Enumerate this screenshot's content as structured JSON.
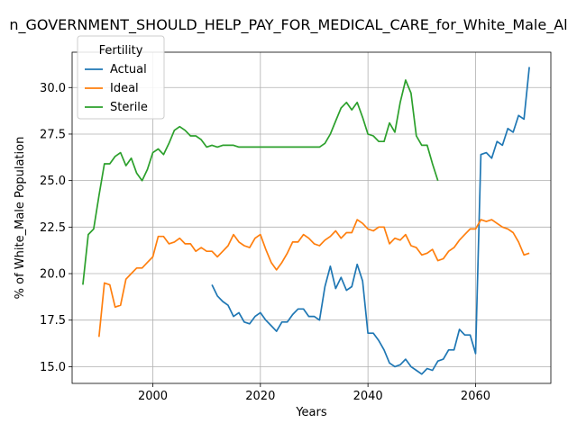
{
  "chart_data": {
    "type": "line",
    "title": "n_GOVERNMENT_SHOULD_HELP_PAY_FOR_MEDICAL_CARE_for_White_Male_Al",
    "xlabel": "Years",
    "ylabel": "% of White_Male Population",
    "xlim": [
      1985,
      2074
    ],
    "ylim": [
      14.1,
      31.9
    ],
    "x_ticks": [
      2000,
      2020,
      2040,
      2060
    ],
    "y_ticks": [
      15.0,
      17.5,
      20.0,
      22.5,
      25.0,
      27.5,
      30.0
    ],
    "grid": true,
    "legend": {
      "title": "Fertility",
      "placement": "top-left"
    },
    "series": [
      {
        "name": "Actual",
        "color": "#1f77b4",
        "x": [
          2011,
          2012,
          2013,
          2014,
          2015,
          2016,
          2017,
          2018,
          2019,
          2020,
          2021,
          2022,
          2023,
          2024,
          2025,
          2026,
          2027,
          2028,
          2029,
          2030,
          2031,
          2032,
          2033,
          2034,
          2035,
          2036,
          2037,
          2038,
          2039,
          2040,
          2041,
          2042,
          2043,
          2044,
          2045,
          2046,
          2047,
          2048,
          2049,
          2050,
          2051,
          2052,
          2053,
          2054,
          2055,
          2056,
          2057,
          2058,
          2059,
          2060,
          2061,
          2062,
          2063,
          2064,
          2065,
          2066,
          2067,
          2068,
          2069,
          2070
        ],
        "values": [
          19.4,
          18.8,
          18.5,
          18.3,
          17.7,
          17.9,
          17.4,
          17.3,
          17.7,
          17.9,
          17.5,
          17.2,
          16.9,
          17.4,
          17.4,
          17.8,
          18.1,
          18.1,
          17.7,
          17.7,
          17.5,
          19.3,
          20.4,
          19.2,
          19.8,
          19.1,
          19.3,
          20.5,
          19.6,
          16.8,
          16.8,
          16.4,
          15.9,
          15.2,
          15.0,
          15.1,
          15.4,
          15.0,
          14.8,
          14.6,
          14.9,
          14.8,
          15.3,
          15.4,
          15.9,
          15.9,
          17.0,
          16.7,
          16.7,
          15.7,
          26.4,
          26.5,
          26.2,
          27.1,
          26.9,
          27.8,
          27.6,
          28.5,
          28.3,
          31.1
        ]
      },
      {
        "name": "Ideal",
        "color": "#ff7f0e",
        "x": [
          1990,
          1991,
          1992,
          1993,
          1994,
          1995,
          1996,
          1997,
          1998,
          1999,
          2000,
          2001,
          2002,
          2003,
          2004,
          2005,
          2006,
          2007,
          2008,
          2009,
          2010,
          2011,
          2012,
          2013,
          2014,
          2015,
          2016,
          2017,
          2018,
          2019,
          2020,
          2021,
          2022,
          2023,
          2024,
          2025,
          2026,
          2027,
          2028,
          2029,
          2030,
          2031,
          2032,
          2033,
          2034,
          2035,
          2036,
          2037,
          2038,
          2039,
          2040,
          2041,
          2042,
          2043,
          2044,
          2045,
          2046,
          2047,
          2048,
          2049,
          2050,
          2051,
          2052,
          2053,
          2054,
          2055,
          2056,
          2057,
          2058,
          2059,
          2060,
          2061,
          2062,
          2063,
          2064,
          2065,
          2066,
          2067,
          2068,
          2069,
          2070
        ],
        "values": [
          16.6,
          19.5,
          19.4,
          18.2,
          18.3,
          19.7,
          20.0,
          20.3,
          20.3,
          20.6,
          20.9,
          22.0,
          22.0,
          21.6,
          21.7,
          21.9,
          21.6,
          21.6,
          21.2,
          21.4,
          21.2,
          21.2,
          20.9,
          21.2,
          21.5,
          22.1,
          21.7,
          21.5,
          21.4,
          21.9,
          22.1,
          21.3,
          20.6,
          20.2,
          20.6,
          21.1,
          21.7,
          21.7,
          22.1,
          21.9,
          21.6,
          21.5,
          21.8,
          22.0,
          22.3,
          21.9,
          22.2,
          22.2,
          22.9,
          22.7,
          22.4,
          22.3,
          22.5,
          22.5,
          21.6,
          21.9,
          21.8,
          22.1,
          21.5,
          21.4,
          21.0,
          21.1,
          21.3,
          20.7,
          20.8,
          21.2,
          21.4,
          21.8,
          22.1,
          22.4,
          22.4,
          22.9,
          22.8,
          22.9,
          22.7,
          22.5,
          22.4,
          22.2,
          21.7,
          21.0,
          21.1
        ]
      },
      {
        "name": "Sterile",
        "color": "#2ca02c",
        "x": [
          1987,
          1988,
          1989,
          1990,
          1991,
          1992,
          1993,
          1994,
          1995,
          1996,
          1997,
          1998,
          1999,
          2000,
          2001,
          2002,
          2003,
          2004,
          2005,
          2006,
          2007,
          2008,
          2009,
          2010,
          2011,
          2012,
          2013,
          2014,
          2015,
          2016,
          2017,
          2018,
          2019,
          2020,
          2021,
          2022,
          2023,
          2024,
          2025,
          2026,
          2027,
          2028,
          2029,
          2030,
          2031,
          2032,
          2033,
          2034,
          2035,
          2036,
          2037,
          2038,
          2039,
          2040,
          2041,
          2042,
          2043,
          2044,
          2045,
          2046,
          2047,
          2048,
          2049,
          2050,
          2051,
          2052,
          2053
        ],
        "values": [
          19.4,
          22.1,
          22.4,
          24.2,
          25.9,
          25.9,
          26.3,
          26.5,
          25.8,
          26.2,
          25.4,
          25.0,
          25.6,
          26.5,
          26.7,
          26.4,
          27.0,
          27.7,
          27.9,
          27.7,
          27.4,
          27.4,
          27.2,
          26.8,
          26.9,
          26.8,
          26.9,
          26.9,
          26.9,
          26.8,
          26.8,
          26.8,
          26.8,
          26.8,
          26.8,
          26.8,
          26.8,
          26.8,
          26.8,
          26.8,
          26.8,
          26.8,
          26.8,
          26.8,
          26.8,
          27.0,
          27.5,
          28.2,
          28.9,
          29.2,
          28.8,
          29.2,
          28.4,
          27.5,
          27.4,
          27.1,
          27.1,
          28.1,
          27.6,
          29.2,
          30.4,
          29.7,
          27.4,
          26.9,
          26.9,
          25.9,
          25.0
        ]
      }
    ]
  }
}
